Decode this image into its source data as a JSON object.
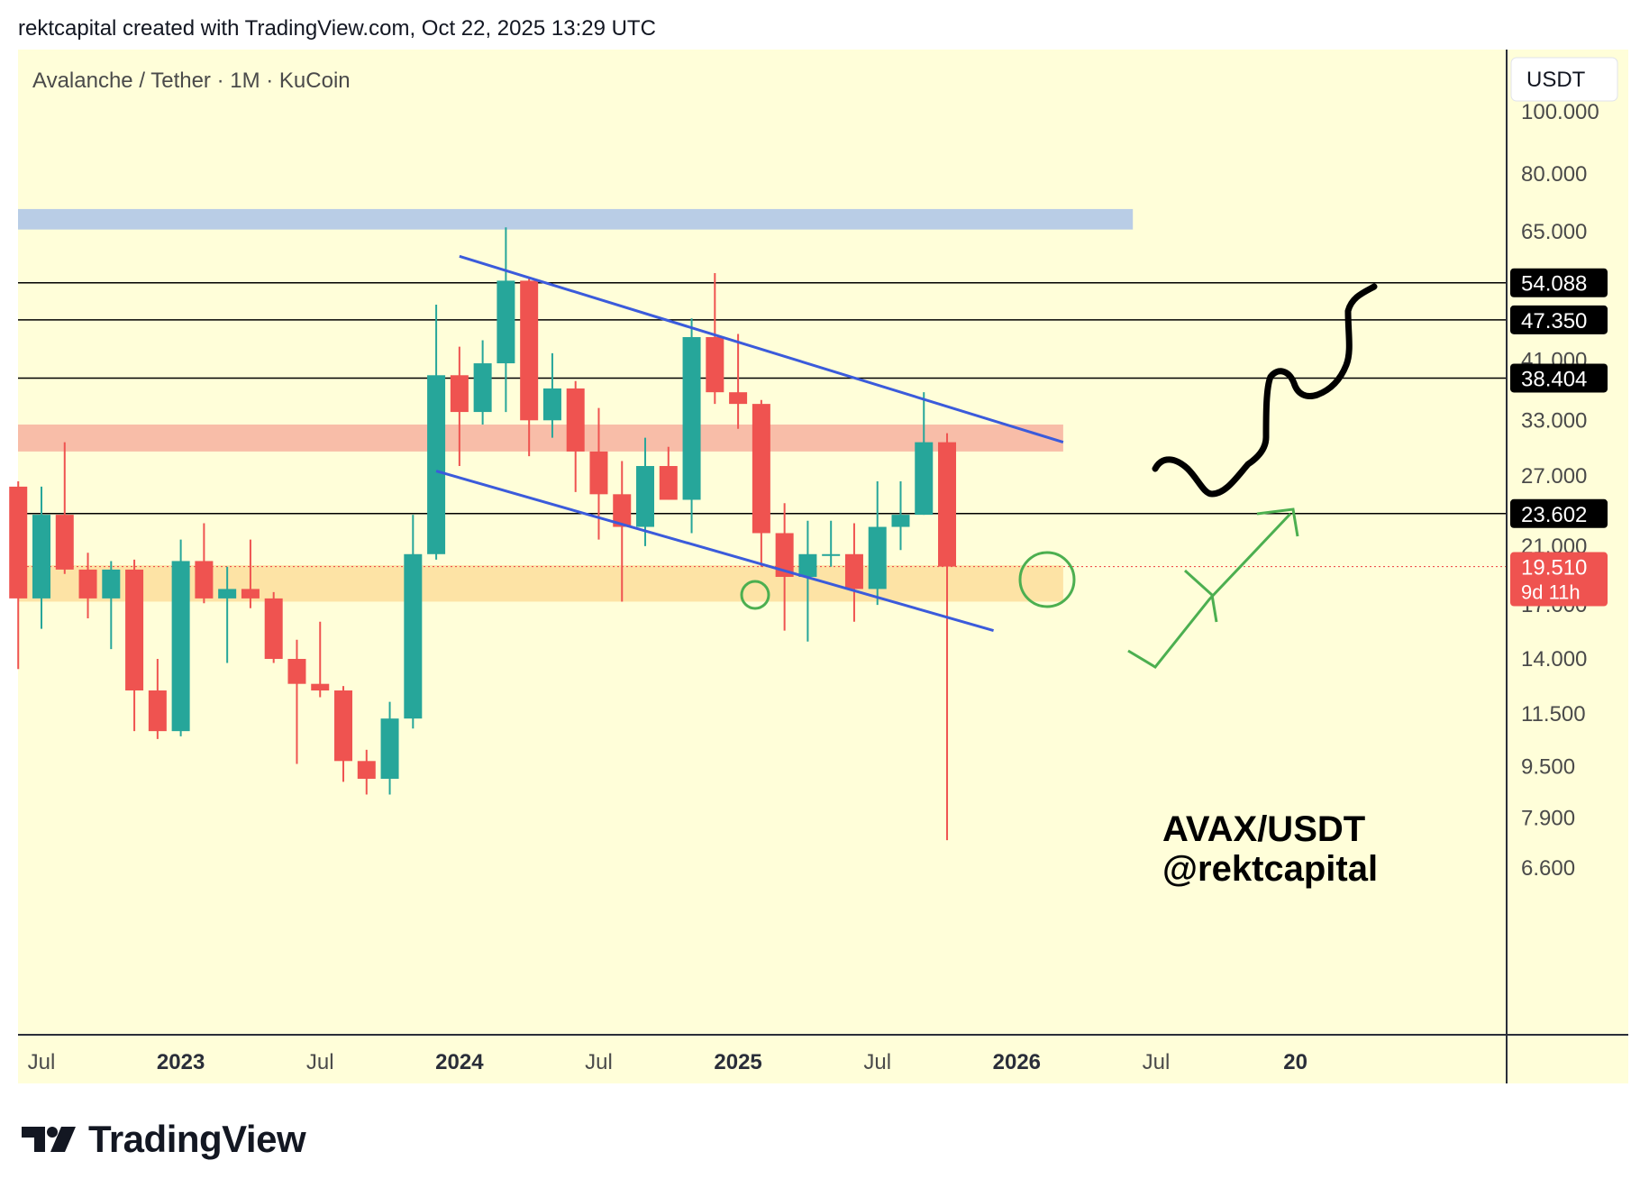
{
  "header": {
    "credit": "rektcapital created with TradingView.com, Oct 22, 2025 13:29 UTC"
  },
  "chart_data": {
    "type": "candlestick",
    "symbol_line": "Avalanche / Tether · 1M · KuCoin",
    "currency": "USDT",
    "scale": "log",
    "ylim": [
      6,
      130
    ],
    "price_ticks": [
      "100.000",
      "80.000",
      "65.000",
      "41.000",
      "33.000",
      "27.000",
      "21.000",
      "17.000",
      "14.000",
      "11.500",
      "9.500",
      "7.900",
      "6.600"
    ],
    "price_tick_values": [
      100,
      80,
      65,
      41,
      33,
      27,
      21,
      17,
      14,
      11.5,
      9.5,
      7.9,
      6.6
    ],
    "time_ticks": [
      {
        "label": "Jul",
        "month": "2022-07",
        "bold": false
      },
      {
        "label": "2023",
        "month": "2023-01",
        "bold": true
      },
      {
        "label": "Jul",
        "month": "2023-07",
        "bold": false
      },
      {
        "label": "2024",
        "month": "2024-01",
        "bold": true
      },
      {
        "label": "Jul",
        "month": "2024-07",
        "bold": false
      },
      {
        "label": "2025",
        "month": "2025-01",
        "bold": true
      },
      {
        "label": "Jul",
        "month": "2025-07",
        "bold": false
      },
      {
        "label": "2026",
        "month": "2026-01",
        "bold": true
      },
      {
        "label": "Jul",
        "month": "2026-07",
        "bold": false
      },
      {
        "label": "20",
        "month": "2027-01",
        "bold": true
      }
    ],
    "candles": [
      {
        "t": "2022-06",
        "o": 26.0,
        "h": 26.5,
        "l": 13.5,
        "c": 17.4
      },
      {
        "t": "2022-07",
        "o": 17.4,
        "h": 26.0,
        "l": 15.6,
        "c": 23.5
      },
      {
        "t": "2022-08",
        "o": 23.5,
        "h": 30.5,
        "l": 19.0,
        "c": 19.3
      },
      {
        "t": "2022-09",
        "o": 19.3,
        "h": 20.5,
        "l": 16.2,
        "c": 17.4
      },
      {
        "t": "2022-10",
        "o": 17.4,
        "h": 19.9,
        "l": 14.5,
        "c": 19.3
      },
      {
        "t": "2022-11",
        "o": 19.3,
        "h": 20.0,
        "l": 10.8,
        "c": 12.5
      },
      {
        "t": "2022-12",
        "o": 12.5,
        "h": 14.0,
        "l": 10.5,
        "c": 10.8
      },
      {
        "t": "2023-01",
        "o": 10.8,
        "h": 21.5,
        "l": 10.6,
        "c": 19.9
      },
      {
        "t": "2023-02",
        "o": 19.9,
        "h": 22.8,
        "l": 17.1,
        "c": 17.4
      },
      {
        "t": "2023-03",
        "o": 17.4,
        "h": 19.5,
        "l": 13.8,
        "c": 18.0
      },
      {
        "t": "2023-04",
        "o": 18.0,
        "h": 21.5,
        "l": 16.8,
        "c": 17.4
      },
      {
        "t": "2023-05",
        "o": 17.4,
        "h": 17.8,
        "l": 13.8,
        "c": 14.0
      },
      {
        "t": "2023-06",
        "o": 14.0,
        "h": 15.0,
        "l": 9.6,
        "c": 12.8
      },
      {
        "t": "2023-07",
        "o": 12.8,
        "h": 16.0,
        "l": 12.2,
        "c": 12.5
      },
      {
        "t": "2023-08",
        "o": 12.5,
        "h": 12.7,
        "l": 9.0,
        "c": 9.7
      },
      {
        "t": "2023-09",
        "o": 9.7,
        "h": 10.1,
        "l": 8.6,
        "c": 9.1
      },
      {
        "t": "2023-10",
        "o": 9.1,
        "h": 12.0,
        "l": 8.6,
        "c": 11.3
      },
      {
        "t": "2023-11",
        "o": 11.3,
        "h": 23.5,
        "l": 10.9,
        "c": 20.4
      },
      {
        "t": "2023-12",
        "o": 20.4,
        "h": 50.0,
        "l": 20.0,
        "c": 38.8
      },
      {
        "t": "2024-01",
        "o": 38.8,
        "h": 43.0,
        "l": 28.0,
        "c": 34.0
      },
      {
        "t": "2024-02",
        "o": 34.0,
        "h": 44.0,
        "l": 32.5,
        "c": 40.5
      },
      {
        "t": "2024-03",
        "o": 40.5,
        "h": 66.0,
        "l": 34.0,
        "c": 54.5
      },
      {
        "t": "2024-04",
        "o": 54.5,
        "h": 54.9,
        "l": 29.0,
        "c": 33.0
      },
      {
        "t": "2024-05",
        "o": 33.0,
        "h": 42.0,
        "l": 31.0,
        "c": 37.0
      },
      {
        "t": "2024-06",
        "o": 37.0,
        "h": 38.0,
        "l": 25.5,
        "c": 29.5
      },
      {
        "t": "2024-07",
        "o": 29.5,
        "h": 34.5,
        "l": 21.5,
        "c": 25.3
      },
      {
        "t": "2024-08",
        "o": 25.3,
        "h": 28.5,
        "l": 17.2,
        "c": 22.5
      },
      {
        "t": "2024-09",
        "o": 22.5,
        "h": 31.0,
        "l": 21.0,
        "c": 28.0
      },
      {
        "t": "2024-10",
        "o": 28.0,
        "h": 30.0,
        "l": 24.8,
        "c": 24.8
      },
      {
        "t": "2024-11",
        "o": 24.8,
        "h": 47.6,
        "l": 22.0,
        "c": 44.5
      },
      {
        "t": "2024-12",
        "o": 44.5,
        "h": 56.0,
        "l": 35.0,
        "c": 36.5
      },
      {
        "t": "2025-01",
        "o": 36.5,
        "h": 45.0,
        "l": 32.0,
        "c": 35.0
      },
      {
        "t": "2025-02",
        "o": 35.0,
        "h": 35.5,
        "l": 19.5,
        "c": 22.0
      },
      {
        "t": "2025-03",
        "o": 22.0,
        "h": 24.5,
        "l": 15.5,
        "c": 18.8
      },
      {
        "t": "2025-04",
        "o": 18.8,
        "h": 23.0,
        "l": 14.9,
        "c": 20.4
      },
      {
        "t": "2025-05",
        "o": 20.4,
        "h": 23.0,
        "l": 19.5,
        "c": 20.4
      },
      {
        "t": "2025-06",
        "o": 20.4,
        "h": 22.8,
        "l": 16.0,
        "c": 18.0
      },
      {
        "t": "2025-07",
        "o": 18.0,
        "h": 26.5,
        "l": 17.0,
        "c": 22.5
      },
      {
        "t": "2025-08",
        "o": 22.5,
        "h": 26.5,
        "l": 20.7,
        "c": 23.5
      },
      {
        "t": "2025-09",
        "o": 23.5,
        "h": 36.5,
        "l": 23.5,
        "c": 30.5
      },
      {
        "t": "2025-10",
        "o": 30.5,
        "h": 31.5,
        "l": 7.3,
        "c": 19.51
      }
    ],
    "horizontal_levels": [
      {
        "value": 54.088,
        "label": "54.088"
      },
      {
        "value": 47.35,
        "label": "47.350"
      },
      {
        "value": 38.404,
        "label": "38.404"
      },
      {
        "value": 23.602,
        "label": "23.602"
      }
    ],
    "current_price": {
      "value": 19.51,
      "label": "19.510",
      "countdown": "9d 11h"
    },
    "zones": [
      {
        "name": "blue",
        "low": 65.5,
        "high": 70.5,
        "color": "#b9cde6",
        "from": "2022-05",
        "to": "2026-06"
      },
      {
        "name": "red",
        "low": 29.5,
        "high": 32.5,
        "color": "#f8bda8",
        "from": "2022-05",
        "to": "2026-03"
      },
      {
        "name": "orange",
        "low": 17.2,
        "high": 19.6,
        "color": "#fde3a5",
        "from": "2022-05",
        "to": "2026-03"
      }
    ],
    "trendlines": [
      {
        "name": "channel-top",
        "from": {
          "t": "2024-01",
          "p": 59.5
        },
        "to": {
          "t": "2026-03",
          "p": 30.5
        },
        "color": "#3b5bdb"
      },
      {
        "name": "channel-bottom",
        "from": {
          "t": "2023-12",
          "p": 27.5
        },
        "to": {
          "t": "2025-12",
          "p": 15.5
        },
        "color": "#3b5bdb"
      }
    ],
    "annotation": {
      "line1": "AVAX/USDT",
      "line2": "@rektcapital"
    },
    "colors": {
      "up": "#26a69a",
      "down": "#ef5350",
      "background": "#fffed9",
      "level": "#000000",
      "projection_green": "#4caf50",
      "projection_black": "#000000"
    }
  },
  "footer": {
    "brand": "TradingView"
  }
}
